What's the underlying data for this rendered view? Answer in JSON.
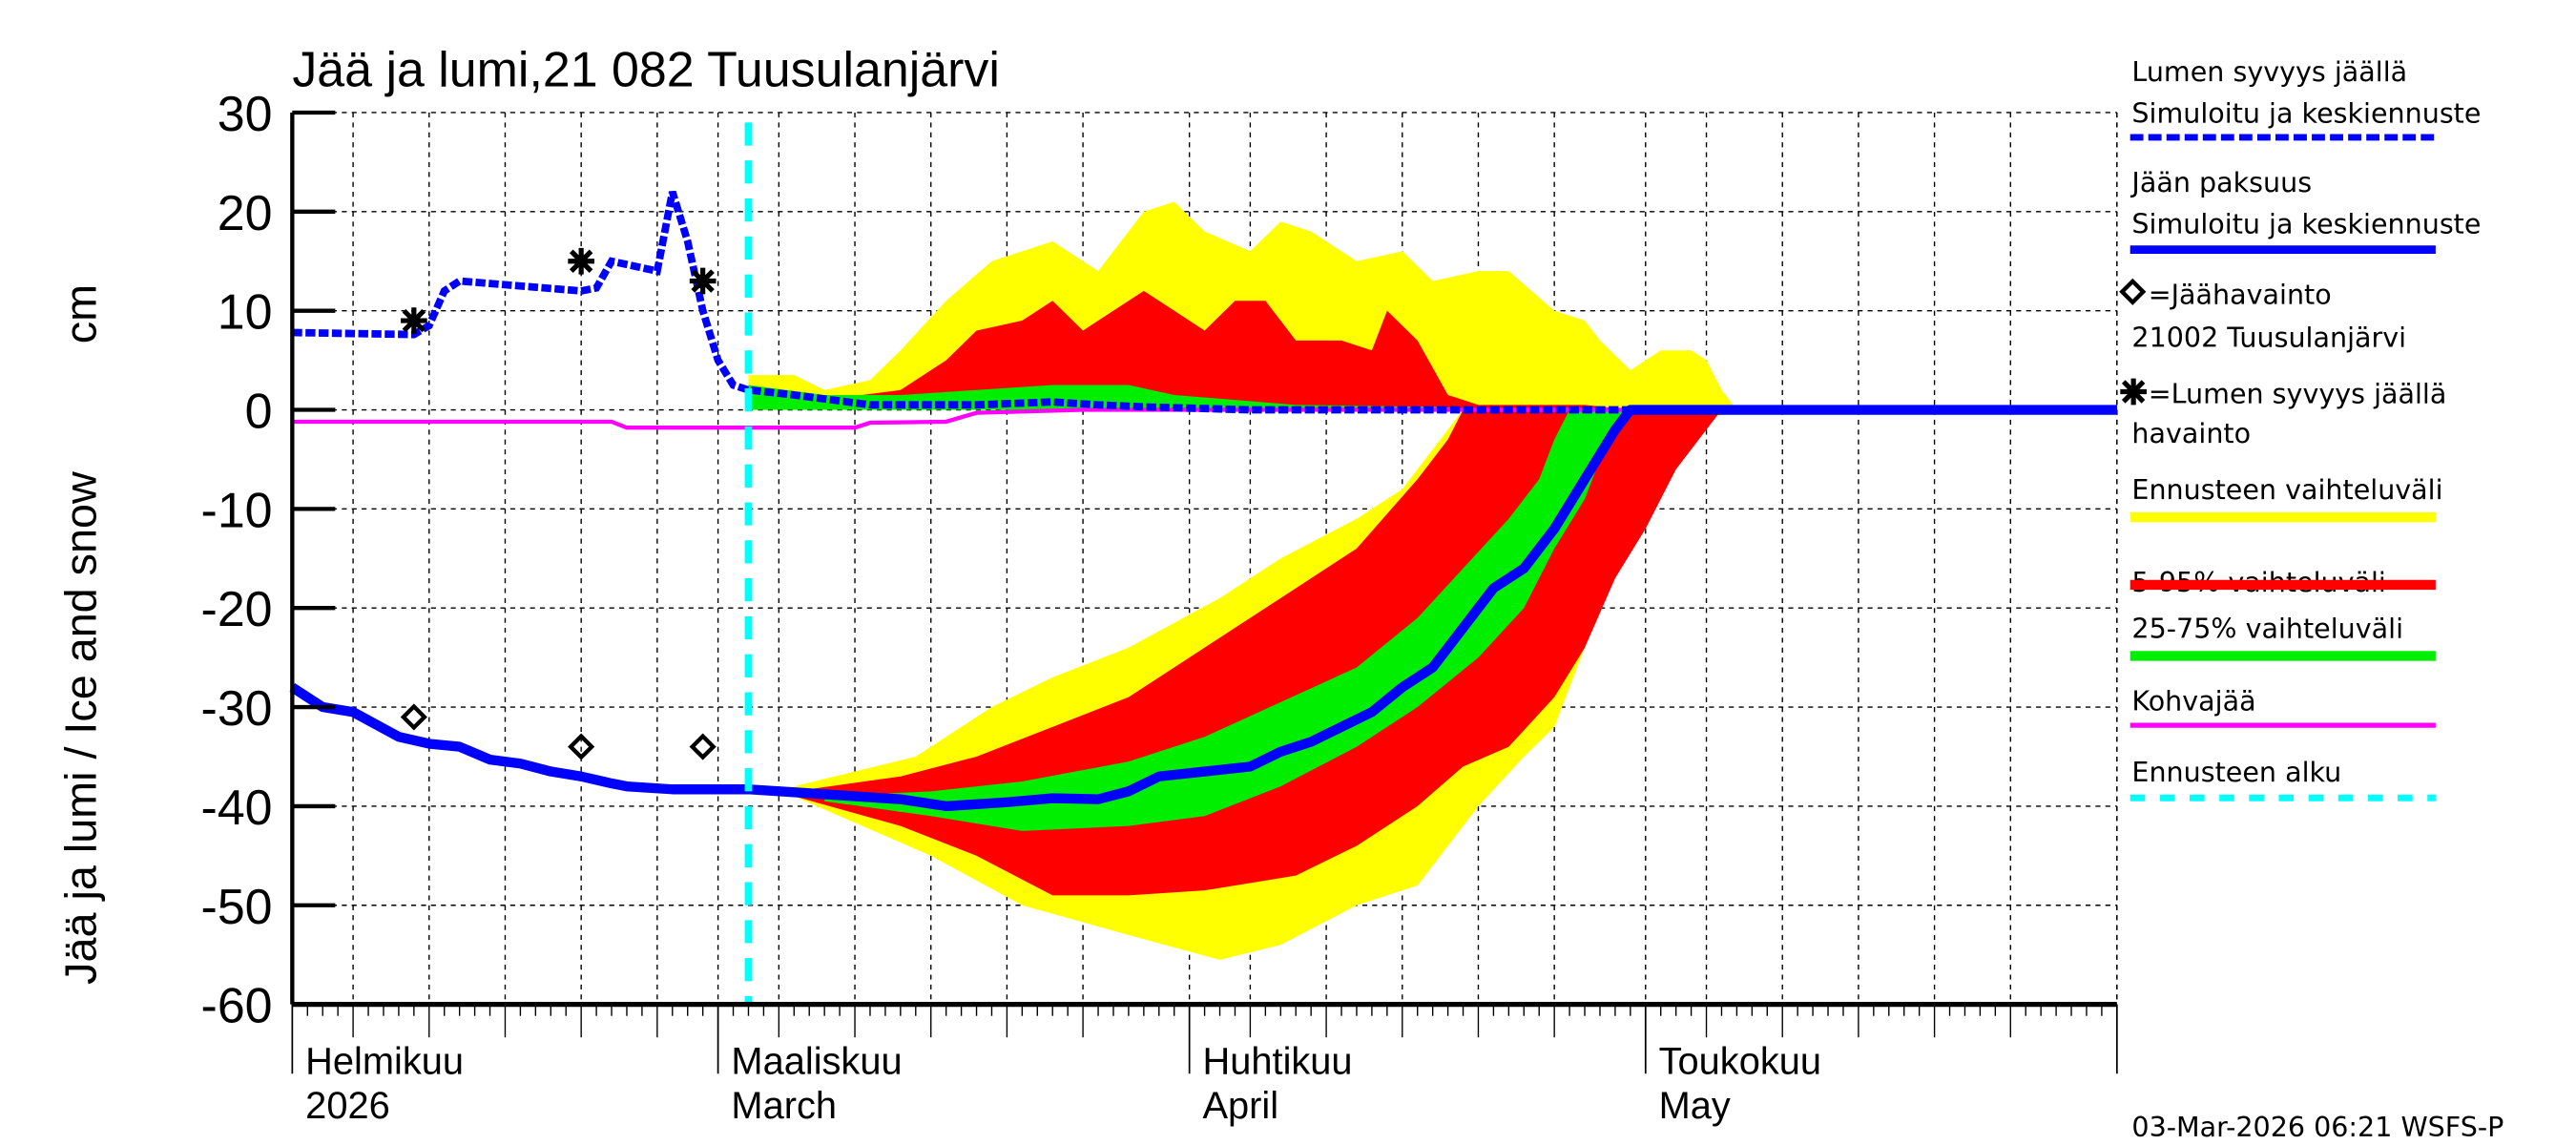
{
  "chart_data": {
    "type": "area",
    "title": "Jää ja lumi,21 082 Tuusulanjärvi",
    "ylabel": "Jää ja lumi / Ice and snow",
    "yunit": "cm",
    "ylim": [
      -60,
      30
    ],
    "yticks": [
      30,
      20,
      10,
      0,
      -10,
      -20,
      -30,
      -40,
      -50,
      -60
    ],
    "xlim": [
      "2026-02-01",
      "2026-06-01"
    ],
    "grid": true,
    "legend_position": "right",
    "months": [
      {
        "date": "2026-02-01",
        "fi": "Helmikuu",
        "en": "2026"
      },
      {
        "date": "2026-03-01",
        "fi": "Maaliskuu",
        "en": "March"
      },
      {
        "date": "2026-04-01",
        "fi": "Huhtikuu",
        "en": "April"
      },
      {
        "date": "2026-05-01",
        "fi": "Toukokuu",
        "en": "May"
      }
    ],
    "forecast_start": "2026-03-03",
    "colors": {
      "snow": "#0000ff",
      "ice": "#0000ff",
      "range": "#ffff00",
      "p5_95": "#ff0000",
      "p25_75": "#00ee00",
      "kohva": "#ff00ff",
      "forecast_start": "#00ffff"
    },
    "series": {
      "snow_sim": [
        [
          "2026-02-01",
          7.8
        ],
        [
          "2026-02-09",
          7.6
        ],
        [
          "2026-02-10",
          8.5
        ],
        [
          "2026-02-11",
          12
        ],
        [
          "2026-02-12",
          13
        ],
        [
          "2026-02-20",
          12
        ],
        [
          "2026-02-21",
          12.3
        ],
        [
          "2026-02-22",
          15
        ],
        [
          "2026-02-25",
          14
        ],
        [
          "2026-02-26",
          22
        ],
        [
          "2026-02-27",
          17
        ],
        [
          "2026-02-28",
          10
        ],
        [
          "2026-03-01",
          5
        ],
        [
          "2026-03-02",
          2.5
        ],
        [
          "2026-03-03",
          2
        ],
        [
          "2026-03-06",
          1.5
        ],
        [
          "2026-03-11",
          0.5
        ],
        [
          "2026-03-18",
          0.5
        ],
        [
          "2026-03-23",
          0.8
        ],
        [
          "2026-03-26",
          0.5
        ],
        [
          "2026-03-29",
          0.3
        ],
        [
          "2026-04-05",
          0
        ],
        [
          "2026-06-01",
          0
        ]
      ],
      "ice_sim": [
        [
          "2026-02-01",
          -28
        ],
        [
          "2026-02-03",
          -30
        ],
        [
          "2026-02-05",
          -30.5
        ],
        [
          "2026-02-08",
          -33
        ],
        [
          "2026-02-10",
          -33.7
        ],
        [
          "2026-02-12",
          -34
        ],
        [
          "2026-02-14",
          -35.3
        ],
        [
          "2026-02-16",
          -35.7
        ],
        [
          "2026-02-18",
          -36.5
        ],
        [
          "2026-02-20",
          -37
        ],
        [
          "2026-02-22",
          -37.7
        ],
        [
          "2026-02-23",
          -38
        ],
        [
          "2026-02-26",
          -38.3
        ],
        [
          "2026-03-03",
          -38.3
        ],
        [
          "2026-03-06",
          -38.6
        ],
        [
          "2026-03-10",
          -39
        ],
        [
          "2026-03-13",
          -39.3
        ],
        [
          "2026-03-16",
          -40
        ],
        [
          "2026-03-20",
          -39.6
        ],
        [
          "2026-03-23",
          -39.2
        ],
        [
          "2026-03-26",
          -39.3
        ],
        [
          "2026-03-28",
          -38.5
        ],
        [
          "2026-03-30",
          -37
        ],
        [
          "2026-04-02",
          -36.5
        ],
        [
          "2026-04-05",
          -36
        ],
        [
          "2026-04-07",
          -34.5
        ],
        [
          "2026-04-09",
          -33.5
        ],
        [
          "2026-04-11",
          -32
        ],
        [
          "2026-04-13",
          -30.5
        ],
        [
          "2026-04-15",
          -28
        ],
        [
          "2026-04-17",
          -26
        ],
        [
          "2026-04-19",
          -22
        ],
        [
          "2026-04-21",
          -18
        ],
        [
          "2026-04-23",
          -16
        ],
        [
          "2026-04-25",
          -12
        ],
        [
          "2026-04-27",
          -7
        ],
        [
          "2026-04-29",
          -2
        ],
        [
          "2026-04-30",
          0
        ],
        [
          "2026-06-01",
          0
        ]
      ],
      "kohva": [
        [
          "2026-02-01",
          -1.2
        ],
        [
          "2026-02-22",
          -1.2
        ],
        [
          "2026-02-23",
          -1.8
        ],
        [
          "2026-03-10",
          -1.8
        ],
        [
          "2026-03-11",
          -1.3
        ],
        [
          "2026-03-16",
          -1.2
        ],
        [
          "2026-03-18",
          -0.3
        ],
        [
          "2026-03-25",
          0
        ],
        [
          "2026-06-01",
          0
        ]
      ],
      "snow_obs": [
        [
          "2026-02-09",
          9
        ],
        [
          "2026-02-20",
          15
        ],
        [
          "2026-02-28",
          13
        ]
      ],
      "ice_obs": [
        [
          "2026-02-09",
          -31
        ],
        [
          "2026-02-20",
          -34
        ],
        [
          "2026-02-28",
          -34
        ]
      ]
    },
    "bands": [
      {
        "kind": "range",
        "upper": [
          [
            "2026-03-06",
            -38
          ],
          [
            "2026-03-14",
            -35
          ],
          [
            "2026-03-19",
            -30
          ],
          [
            "2026-03-23",
            -27
          ],
          [
            "2026-03-28",
            -24
          ],
          [
            "2026-04-03",
            -19
          ],
          [
            "2026-04-07",
            -15
          ],
          [
            "2026-04-12",
            -11
          ],
          [
            "2026-04-15",
            -8
          ],
          [
            "2026-04-17",
            -4
          ],
          [
            "2026-04-19",
            0
          ],
          [
            "2026-05-07",
            0
          ]
        ],
        "lower": [
          [
            "2026-03-06",
            -39
          ],
          [
            "2026-03-15",
            -45
          ],
          [
            "2026-03-21",
            -50
          ],
          [
            "2026-03-28",
            -53
          ],
          [
            "2026-04-03",
            -55.5
          ],
          [
            "2026-04-07",
            -54
          ],
          [
            "2026-04-12",
            -50
          ],
          [
            "2026-04-16",
            -48
          ],
          [
            "2026-04-18",
            -44
          ],
          [
            "2026-04-20",
            -40
          ],
          [
            "2026-04-23",
            -35
          ],
          [
            "2026-04-25",
            -32
          ],
          [
            "2026-04-27",
            -24
          ],
          [
            "2026-04-29",
            -15
          ],
          [
            "2026-05-02",
            -8
          ],
          [
            "2026-05-03",
            -4
          ],
          [
            "2026-05-05",
            -1
          ],
          [
            "2026-05-07",
            0
          ]
        ]
      },
      {
        "kind": "range",
        "upper": [
          [
            "2026-03-03",
            3.5
          ],
          [
            "2026-03-06",
            3.5
          ],
          [
            "2026-03-08",
            2
          ],
          [
            "2026-03-11",
            3
          ],
          [
            "2026-03-13",
            6
          ],
          [
            "2026-03-16",
            11
          ],
          [
            "2026-03-19",
            15
          ],
          [
            "2026-03-23",
            17
          ],
          [
            "2026-03-26",
            14
          ],
          [
            "2026-03-29",
            20
          ],
          [
            "2026-03-31",
            21
          ],
          [
            "2026-04-02",
            18
          ],
          [
            "2026-04-05",
            16
          ],
          [
            "2026-04-07",
            19
          ],
          [
            "2026-04-09",
            18
          ],
          [
            "2026-04-12",
            15
          ],
          [
            "2026-04-15",
            16
          ],
          [
            "2026-04-17",
            13
          ],
          [
            "2026-04-20",
            14
          ],
          [
            "2026-04-22",
            14
          ],
          [
            "2026-04-25",
            10
          ],
          [
            "2026-04-27",
            9
          ],
          [
            "2026-04-28",
            7
          ],
          [
            "2026-04-30",
            4
          ],
          [
            "2026-05-02",
            6
          ],
          [
            "2026-05-04",
            6
          ],
          [
            "2026-05-05",
            5
          ],
          [
            "2026-05-06",
            2
          ],
          [
            "2026-05-07",
            0
          ]
        ],
        "lower": null
      },
      {
        "kind": "p5_95",
        "upper": [
          [
            "2026-03-06",
            -38.5
          ],
          [
            "2026-03-13",
            -37
          ],
          [
            "2026-03-18",
            -35
          ],
          [
            "2026-03-23",
            -32
          ],
          [
            "2026-03-28",
            -29
          ],
          [
            "2026-04-02",
            -24
          ],
          [
            "2026-04-07",
            -19
          ],
          [
            "2026-04-12",
            -14
          ],
          [
            "2026-04-16",
            -7
          ],
          [
            "2026-04-18",
            -3
          ],
          [
            "2026-04-19",
            0
          ],
          [
            "2026-05-06",
            0
          ]
        ],
        "lower": [
          [
            "2026-03-06",
            -39
          ],
          [
            "2026-03-13",
            -42
          ],
          [
            "2026-03-18",
            -45
          ],
          [
            "2026-03-23",
            -49
          ],
          [
            "2026-03-28",
            -49
          ],
          [
            "2026-04-02",
            -48.5
          ],
          [
            "2026-04-08",
            -47
          ],
          [
            "2026-04-12",
            -44
          ],
          [
            "2026-04-16",
            -40
          ],
          [
            "2026-04-19",
            -36
          ],
          [
            "2026-04-22",
            -34
          ],
          [
            "2026-04-25",
            -29
          ],
          [
            "2026-04-27",
            -24
          ],
          [
            "2026-04-29",
            -17
          ],
          [
            "2026-05-01",
            -12
          ],
          [
            "2026-05-03",
            -6
          ],
          [
            "2026-05-05",
            -2
          ],
          [
            "2026-05-06",
            0
          ]
        ]
      },
      {
        "kind": "p5_95",
        "upper": [
          [
            "2026-03-03",
            2.5
          ],
          [
            "2026-03-08",
            1
          ],
          [
            "2026-03-13",
            2
          ],
          [
            "2026-03-16",
            5
          ],
          [
            "2026-03-18",
            8
          ],
          [
            "2026-03-21",
            9
          ],
          [
            "2026-03-23",
            11
          ],
          [
            "2026-03-25",
            8
          ],
          [
            "2026-03-27",
            10
          ],
          [
            "2026-03-29",
            12
          ],
          [
            "2026-03-31",
            10
          ],
          [
            "2026-04-02",
            8
          ],
          [
            "2026-04-04",
            11
          ],
          [
            "2026-04-06",
            11
          ],
          [
            "2026-04-08",
            7
          ],
          [
            "2026-04-11",
            7
          ],
          [
            "2026-04-13",
            6
          ],
          [
            "2026-04-14",
            10
          ],
          [
            "2026-04-16",
            7
          ],
          [
            "2026-04-18",
            1.5
          ],
          [
            "2026-04-20",
            0.5
          ],
          [
            "2026-04-27",
            0.5
          ],
          [
            "2026-04-30",
            0
          ]
        ],
        "lower": null
      },
      {
        "kind": "p25_75",
        "upper": [
          [
            "2026-03-08",
            -39
          ],
          [
            "2026-03-15",
            -38.5
          ],
          [
            "2026-03-21",
            -37.5
          ],
          [
            "2026-03-28",
            -35.5
          ],
          [
            "2026-04-02",
            -33
          ],
          [
            "2026-04-07",
            -29.5
          ],
          [
            "2026-04-12",
            -26
          ],
          [
            "2026-04-16",
            -21
          ],
          [
            "2026-04-19",
            -16
          ],
          [
            "2026-04-22",
            -11
          ],
          [
            "2026-04-24",
            -7
          ],
          [
            "2026-04-25",
            -3
          ],
          [
            "2026-04-26",
            0
          ],
          [
            "2026-04-30",
            0
          ]
        ],
        "lower": [
          [
            "2026-03-08",
            -39.5
          ],
          [
            "2026-03-15",
            -41
          ],
          [
            "2026-03-21",
            -42.5
          ],
          [
            "2026-03-28",
            -42
          ],
          [
            "2026-04-02",
            -41
          ],
          [
            "2026-04-07",
            -38
          ],
          [
            "2026-04-12",
            -34
          ],
          [
            "2026-04-16",
            -30
          ],
          [
            "2026-04-20",
            -25
          ],
          [
            "2026-04-23",
            -20
          ],
          [
            "2026-04-25",
            -14
          ],
          [
            "2026-04-27",
            -9
          ],
          [
            "2026-04-28",
            -5
          ],
          [
            "2026-04-29",
            -2
          ],
          [
            "2026-04-30",
            0
          ]
        ]
      },
      {
        "kind": "p25_75",
        "upper": [
          [
            "2026-03-03",
            2.5
          ],
          [
            "2026-03-08",
            1.5
          ],
          [
            "2026-03-13",
            1.5
          ],
          [
            "2026-03-18",
            2
          ],
          [
            "2026-03-23",
            2.5
          ],
          [
            "2026-03-28",
            2.5
          ],
          [
            "2026-03-31",
            1.5
          ],
          [
            "2026-04-04",
            1
          ],
          [
            "2026-04-08",
            0.5
          ],
          [
            "2026-04-17",
            0.3
          ],
          [
            "2026-04-22",
            0
          ]
        ],
        "lower": null
      }
    ]
  },
  "legend": {
    "snow_l1": "Lumen syvyys jäällä",
    "snow_l2": "Simuloitu ja keskiennuste",
    "ice_l1": "Jään paksuus",
    "ice_l2": "Simuloitu ja keskiennuste",
    "ice_obs_l1": "=Jäähavainto",
    "ice_obs_l2": "21002 Tuusulanjärvi",
    "snow_obs_l1": "=Lumen syvyys jäällä",
    "snow_obs_l2": "havainto",
    "range": "Ennusteen vaihteluväli",
    "p5_95": "5-95% vaihteluväli",
    "p25_75": "25-75% vaihteluväli",
    "kohva": "Kohvajää",
    "forecast_start": "Ennusteen alku"
  },
  "footer": "03-Mar-2026 06:21 WSFS-P"
}
